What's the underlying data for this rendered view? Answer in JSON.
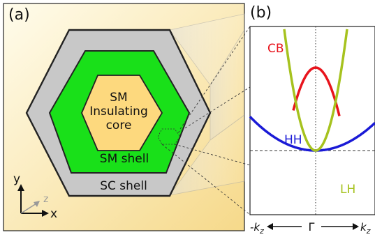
{
  "panel_a": {
    "label": "(a)",
    "core_lines": [
      "SM",
      "Insulating",
      "core"
    ],
    "sm_shell": "SM shell",
    "sc_shell": "SC shell",
    "axes": {
      "y": "y",
      "z": "z",
      "x": "x"
    }
  },
  "panel_b": {
    "label": "(b)",
    "bands": {
      "cb": {
        "label": "CB",
        "color": "#e8141c"
      },
      "hh": {
        "label": "HH",
        "color": "#1a1ad6"
      },
      "lh": {
        "label": "LH",
        "color": "#a6c21e"
      }
    },
    "axis": {
      "left": "-k",
      "left_sub": "z",
      "center": "Γ",
      "right": "k",
      "right_sub": "z"
    }
  },
  "colors": {
    "background_top": "#fffbe8",
    "background_bottom": "#f5d98c",
    "sc_shell": "#c8c8c8",
    "sm_shell": "#19e019",
    "core": "#fdd97e"
  }
}
